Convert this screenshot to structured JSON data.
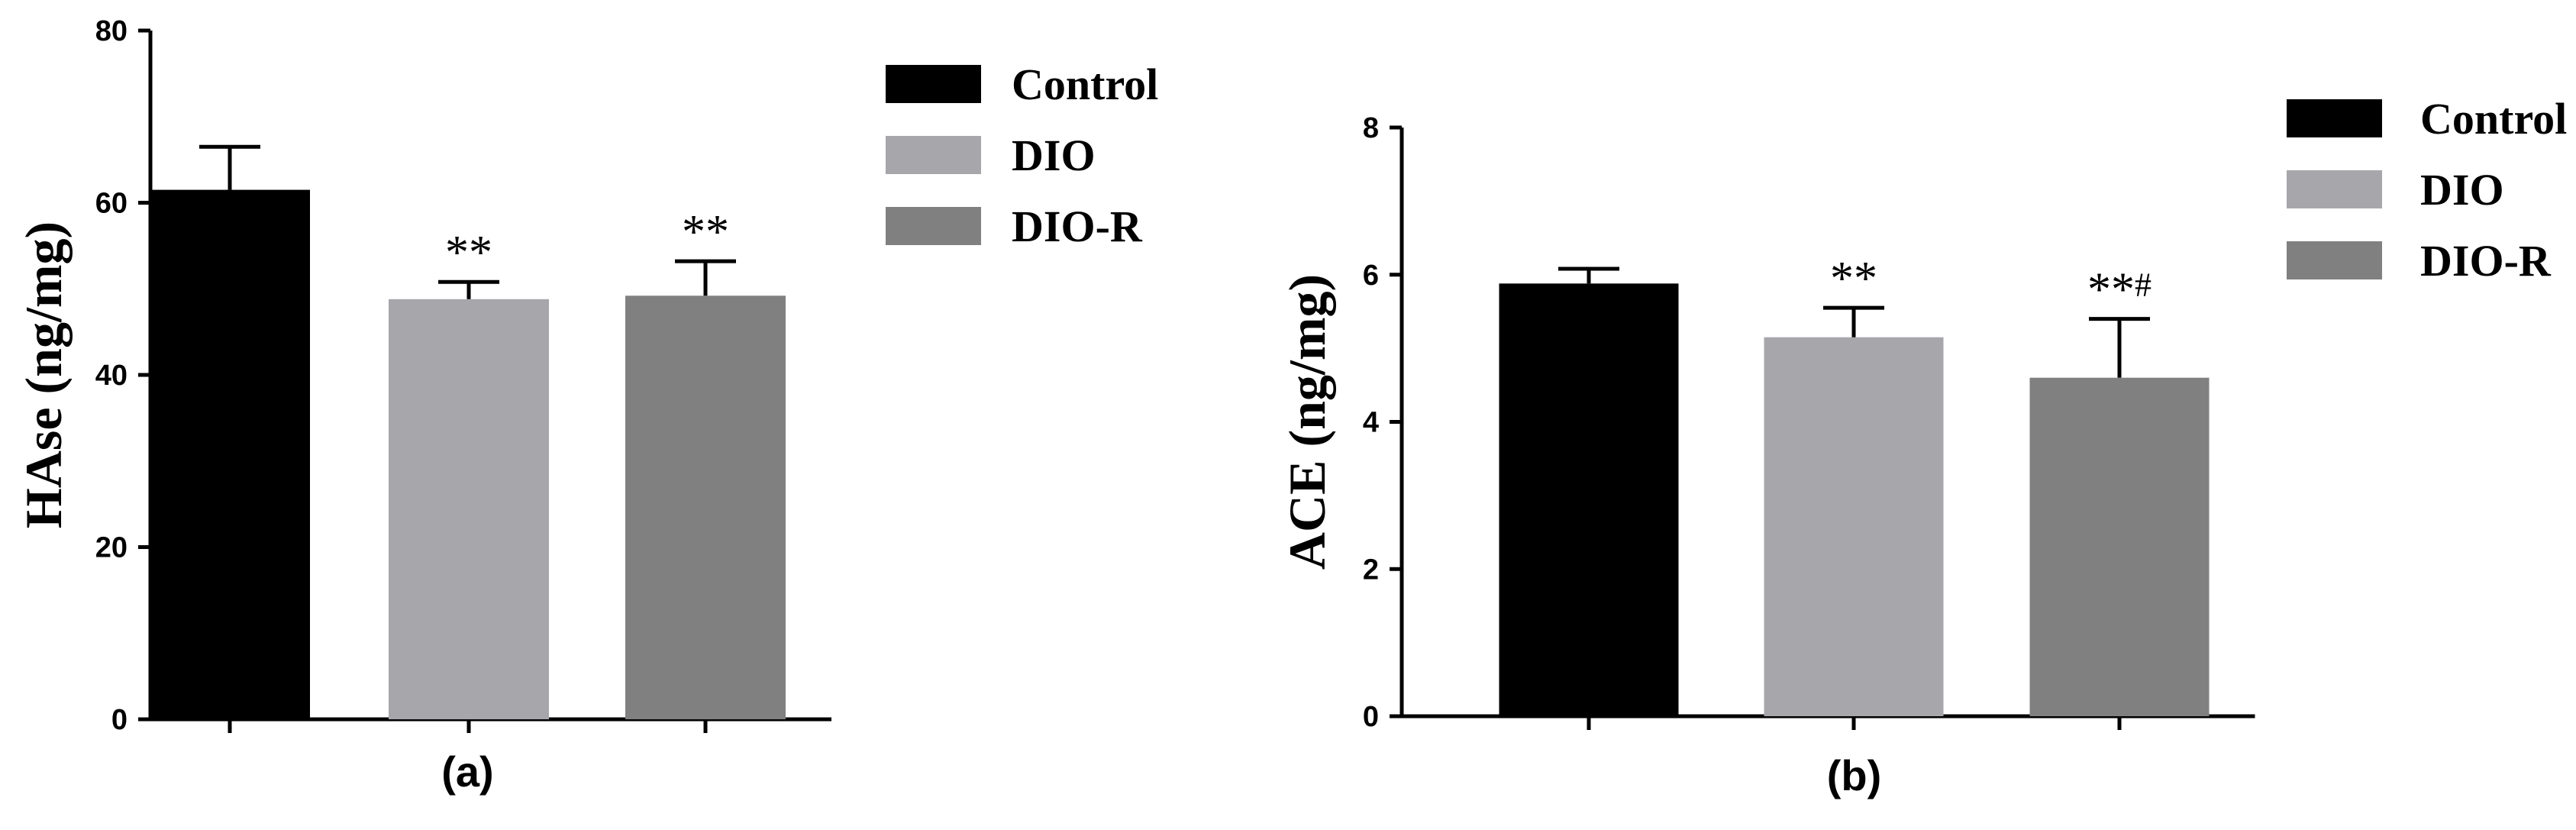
{
  "chart_data": [
    {
      "type": "bar",
      "panel_label": "(a)",
      "ylabel": "HAse (ng/mg)",
      "ylim": [
        0,
        80
      ],
      "yticks": [
        "0",
        "20",
        "40",
        "60",
        "80"
      ],
      "categories": [
        "Control",
        "DIO",
        "DIO-R"
      ],
      "values": [
        61.5,
        48.8,
        49.2
      ],
      "errors": [
        5.0,
        2.0,
        4.0
      ],
      "annotations": [
        "",
        "**",
        "**"
      ],
      "legend": [
        "Control",
        "DIO",
        "DIO-R"
      ],
      "legend_position": "top-right",
      "colors": [
        "#000000",
        "#a7a6ab",
        "#808080"
      ],
      "grid": false
    },
    {
      "type": "bar",
      "panel_label": "(b)",
      "ylabel": "ACE (ng/mg)",
      "ylim": [
        0,
        8
      ],
      "yticks": [
        "0",
        "2",
        "4",
        "6",
        "8"
      ],
      "categories": [
        "Control",
        "DIO",
        "DIO-R"
      ],
      "values": [
        5.88,
        5.15,
        4.6
      ],
      "errors": [
        0.2,
        0.4,
        0.8
      ],
      "annotations": [
        "",
        "**",
        "**#"
      ],
      "legend": [
        "Control",
        "DIO",
        "DIO-R"
      ],
      "legend_position": "top-right",
      "colors": [
        "#000000",
        "#a7a6ab",
        "#808080"
      ],
      "grid": false
    }
  ]
}
